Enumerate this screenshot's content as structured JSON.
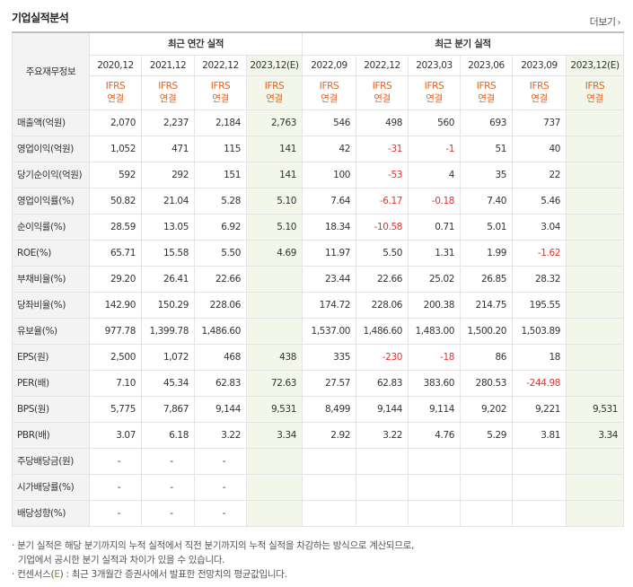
{
  "title": "기업실적분석",
  "more": "더보기",
  "header": {
    "row_header": "주요재무정보",
    "group_annual": "최근 연간 실적",
    "group_quarter": "최근 분기 실적",
    "periods": [
      "2020,12",
      "2021,12",
      "2022,12",
      "2023,12(E)",
      "2022,09",
      "2022,12",
      "2023,03",
      "2023,06",
      "2023,09",
      "2023,12(E)"
    ],
    "std_top": "IFRS",
    "std_bottom": "연결"
  },
  "rows": [
    {
      "label": "매출액(억원)",
      "values": [
        "2,070",
        "2,237",
        "2,184",
        "2,763",
        "546",
        "498",
        "560",
        "693",
        "737",
        ""
      ]
    },
    {
      "label": "영업이익(억원)",
      "values": [
        "1,052",
        "471",
        "115",
        "141",
        "42",
        "-31",
        "-1",
        "51",
        "40",
        ""
      ]
    },
    {
      "label": "당기순이익(억원)",
      "values": [
        "592",
        "292",
        "151",
        "141",
        "100",
        "-53",
        "4",
        "35",
        "22",
        ""
      ]
    },
    {
      "label": "영업이익률(%)",
      "values": [
        "50.82",
        "21.04",
        "5.28",
        "5.10",
        "7.64",
        "-6.17",
        "-0.18",
        "7.40",
        "5.46",
        ""
      ]
    },
    {
      "label": "순이익률(%)",
      "values": [
        "28.59",
        "13.05",
        "6.92",
        "5.10",
        "18.34",
        "-10.58",
        "0.71",
        "5.01",
        "3.04",
        ""
      ]
    },
    {
      "label": "ROE(%)",
      "values": [
        "65.71",
        "15.58",
        "5.50",
        "4.69",
        "11.97",
        "5.50",
        "1.31",
        "1.99",
        "-1.62",
        ""
      ]
    },
    {
      "label": "부채비율(%)",
      "values": [
        "29.20",
        "26.41",
        "22.66",
        "",
        "23.44",
        "22.66",
        "25.02",
        "26.85",
        "28.32",
        ""
      ]
    },
    {
      "label": "당좌비율(%)",
      "values": [
        "142.90",
        "150.29",
        "228.06",
        "",
        "174.72",
        "228.06",
        "200.38",
        "214.75",
        "195.55",
        ""
      ]
    },
    {
      "label": "유보율(%)",
      "values": [
        "977.78",
        "1,399.78",
        "1,486.60",
        "",
        "1,537.00",
        "1,486.60",
        "1,483.00",
        "1,500.20",
        "1,503.89",
        ""
      ]
    },
    {
      "label": "EPS(원)",
      "values": [
        "2,500",
        "1,072",
        "468",
        "438",
        "335",
        "-230",
        "-18",
        "86",
        "18",
        ""
      ]
    },
    {
      "label": "PER(배)",
      "values": [
        "7.10",
        "45.34",
        "62.83",
        "72.63",
        "27.57",
        "62.83",
        "383.60",
        "280.53",
        "-244.98",
        ""
      ]
    },
    {
      "label": "BPS(원)",
      "values": [
        "5,775",
        "7,867",
        "9,144",
        "9,531",
        "8,499",
        "9,144",
        "9,114",
        "9,202",
        "9,221",
        "9,531"
      ]
    },
    {
      "label": "PBR(배)",
      "values": [
        "3.07",
        "6.18",
        "3.22",
        "3.34",
        "2.92",
        "3.22",
        "4.76",
        "5.29",
        "3.81",
        "3.34"
      ]
    },
    {
      "label": "주당배당금(원)",
      "values": [
        "-",
        "-",
        "-",
        "",
        "",
        "",
        "",
        "",
        "",
        ""
      ]
    },
    {
      "label": "시가배당률(%)",
      "values": [
        "-",
        "-",
        "-",
        "",
        "",
        "",
        "",
        "",
        "",
        ""
      ]
    },
    {
      "label": "배당성향(%)",
      "values": [
        "-",
        "-",
        "-",
        "",
        "",
        "",
        "",
        "",
        "",
        ""
      ]
    }
  ],
  "notes": {
    "line1": "· 분기 실적은 해당 분기까지의 누적 실적에서 직전 분기까지의 누적 실적을 차감하는 방식으로 계산되므로,",
    "line2": "기업에서 공시한 분기 실적과 차이가 있을 수 있습니다.",
    "line3_a": "· 컨센서스(",
    "line3_e": "E",
    "line3_b": ") : 최근 3개월간 증권사에서 발표한 전망치의 평균값입니다."
  }
}
